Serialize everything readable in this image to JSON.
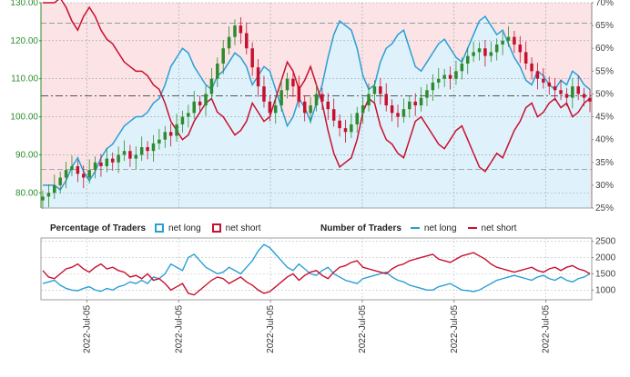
{
  "legend": {
    "pct_title": "Percentage of Traders",
    "num_title": "Number of Traders",
    "net_long": "net long",
    "net_short": "net short"
  },
  "colors": {
    "long": "#2a9fd6",
    "short": "#c8102e",
    "long_fill": "#dff2fb",
    "short_fill": "#fbe3e6",
    "candle_up": "#2e8b2e",
    "candle_down": "#c8102e"
  },
  "chart_data": [
    {
      "type": "candlestick",
      "title": "",
      "ylim": [
        76,
        130
      ],
      "y_ticks": [
        "80.00",
        "90.00",
        "100.00",
        "110.00",
        "120.00",
        "130.00"
      ],
      "y2_ticks": [
        "25%",
        "30%",
        "35%",
        "40%",
        "45%",
        "50%",
        "55%",
        "60%",
        "65%",
        "70%"
      ],
      "y2lim": [
        25,
        70
      ],
      "reference_lines": [
        105.5
      ],
      "percentage_lines": [
        33.5,
        65.5
      ],
      "close": [
        79,
        80,
        82,
        84,
        86,
        87,
        85,
        84,
        86,
        88,
        87,
        89,
        88,
        90,
        91,
        89,
        90,
        92,
        91,
        93,
        94,
        96,
        95,
        98,
        100,
        101,
        104,
        103,
        106,
        110,
        114,
        118,
        121,
        124,
        122,
        118,
        113,
        108,
        104,
        101,
        103,
        107,
        110,
        108,
        104,
        101,
        103,
        106,
        104,
        102,
        99,
        97,
        96,
        98,
        101,
        103,
        106,
        108,
        106,
        103,
        101,
        100,
        102,
        104,
        103,
        105,
        107,
        109,
        110,
        111,
        110,
        112,
        114,
        116,
        117,
        118,
        116,
        117,
        119,
        120,
        121,
        119,
        117,
        114,
        112,
        110,
        109,
        108,
        107,
        106,
        105,
        108,
        106,
        105,
        104
      ],
      "net_long_pct": [
        30,
        30,
        30,
        29,
        31,
        34,
        36,
        33,
        31,
        33,
        36,
        38,
        39,
        41,
        43,
        44,
        45,
        45,
        46,
        48,
        49,
        52,
        56,
        58,
        60,
        59,
        56,
        54,
        52,
        51,
        54,
        55,
        57,
        59,
        58,
        56,
        52,
        54,
        56,
        55,
        51,
        47,
        43,
        45,
        49,
        47,
        44,
        48,
        52,
        58,
        63,
        66,
        65,
        64,
        60,
        54,
        51,
        52,
        57,
        60,
        61,
        63,
        64,
        60,
        56,
        55,
        57,
        59,
        61,
        62,
        60,
        58,
        57,
        60,
        63,
        66,
        67,
        65,
        63,
        64,
        61,
        58,
        56,
        53,
        52,
        55,
        54,
        52,
        51,
        53,
        52,
        55,
        54,
        52,
        51
      ],
      "net_short_pct": [
        70,
        70,
        70,
        71,
        69,
        66,
        64,
        67,
        69,
        67,
        64,
        62,
        61,
        59,
        57,
        56,
        55,
        55,
        54,
        52,
        51,
        48,
        44,
        42,
        40,
        41,
        44,
        46,
        48,
        49,
        46,
        45,
        43,
        41,
        42,
        44,
        48,
        46,
        44,
        45,
        49,
        53,
        57,
        55,
        51,
        53,
        56,
        52,
        48,
        42,
        37,
        34,
        35,
        36,
        40,
        46,
        49,
        48,
        43,
        40,
        39,
        37,
        36,
        40,
        44,
        45,
        43,
        41,
        39,
        38,
        40,
        42,
        43,
        40,
        37,
        34,
        33,
        35,
        37,
        36,
        39,
        42,
        44,
        47,
        48,
        45,
        46,
        48,
        49,
        47,
        48,
        45,
        46,
        48,
        49
      ]
    },
    {
      "type": "line",
      "title": "",
      "ylim": [
        700,
        2600
      ],
      "y_ticks": [
        "1000",
        "1500",
        "2000",
        "2500"
      ],
      "x_ticks": [
        "2022-Jul-05",
        "2022-Jul-05",
        "2022-Jul-05",
        "2022-Jul-05",
        "2022-Jul-05",
        "2022-Jul-05"
      ],
      "series": [
        {
          "name": "net long",
          "values": [
            1200,
            1250,
            1300,
            1150,
            1050,
            1000,
            980,
            1050,
            1100,
            1000,
            960,
            1050,
            1000,
            1100,
            1150,
            1250,
            1200,
            1300,
            1200,
            1400,
            1350,
            1500,
            1800,
            1700,
            1600,
            2000,
            2100,
            1900,
            1700,
            1600,
            1500,
            1550,
            1700,
            1600,
            1500,
            1700,
            1900,
            2200,
            2400,
            2300,
            2100,
            1900,
            1700,
            1600,
            1800,
            1650,
            1500,
            1450,
            1600,
            1700,
            1500,
            1400,
            1300,
            1250,
            1200,
            1350,
            1400,
            1450,
            1500,
            1550,
            1400,
            1300,
            1250,
            1150,
            1100,
            1050,
            1000,
            1000,
            1100,
            1150,
            1200,
            1100,
            1000,
            980,
            950,
            1000,
            1100,
            1200,
            1300,
            1350,
            1400,
            1450,
            1400,
            1350,
            1300,
            1400,
            1450,
            1350,
            1300,
            1400,
            1300,
            1250,
            1350,
            1400,
            1500
          ]
        },
        {
          "name": "net short",
          "values": [
            1600,
            1400,
            1350,
            1500,
            1650,
            1700,
            1800,
            1650,
            1550,
            1700,
            1800,
            1650,
            1700,
            1600,
            1550,
            1400,
            1450,
            1350,
            1500,
            1300,
            1350,
            1200,
            1000,
            1100,
            1200,
            900,
            850,
            1000,
            1150,
            1300,
            1400,
            1350,
            1200,
            1300,
            1400,
            1250,
            1150,
            1000,
            900,
            950,
            1100,
            1250,
            1400,
            1500,
            1300,
            1450,
            1550,
            1600,
            1450,
            1350,
            1550,
            1700,
            1750,
            1850,
            1900,
            1700,
            1650,
            1600,
            1550,
            1500,
            1650,
            1750,
            1800,
            1900,
            1950,
            2000,
            2050,
            2100,
            1950,
            1900,
            1850,
            1950,
            2050,
            2100,
            2150,
            2050,
            1950,
            1800,
            1700,
            1650,
            1600,
            1550,
            1600,
            1650,
            1700,
            1600,
            1550,
            1650,
            1700,
            1600,
            1700,
            1750,
            1650,
            1600,
            1500
          ]
        }
      ]
    }
  ]
}
